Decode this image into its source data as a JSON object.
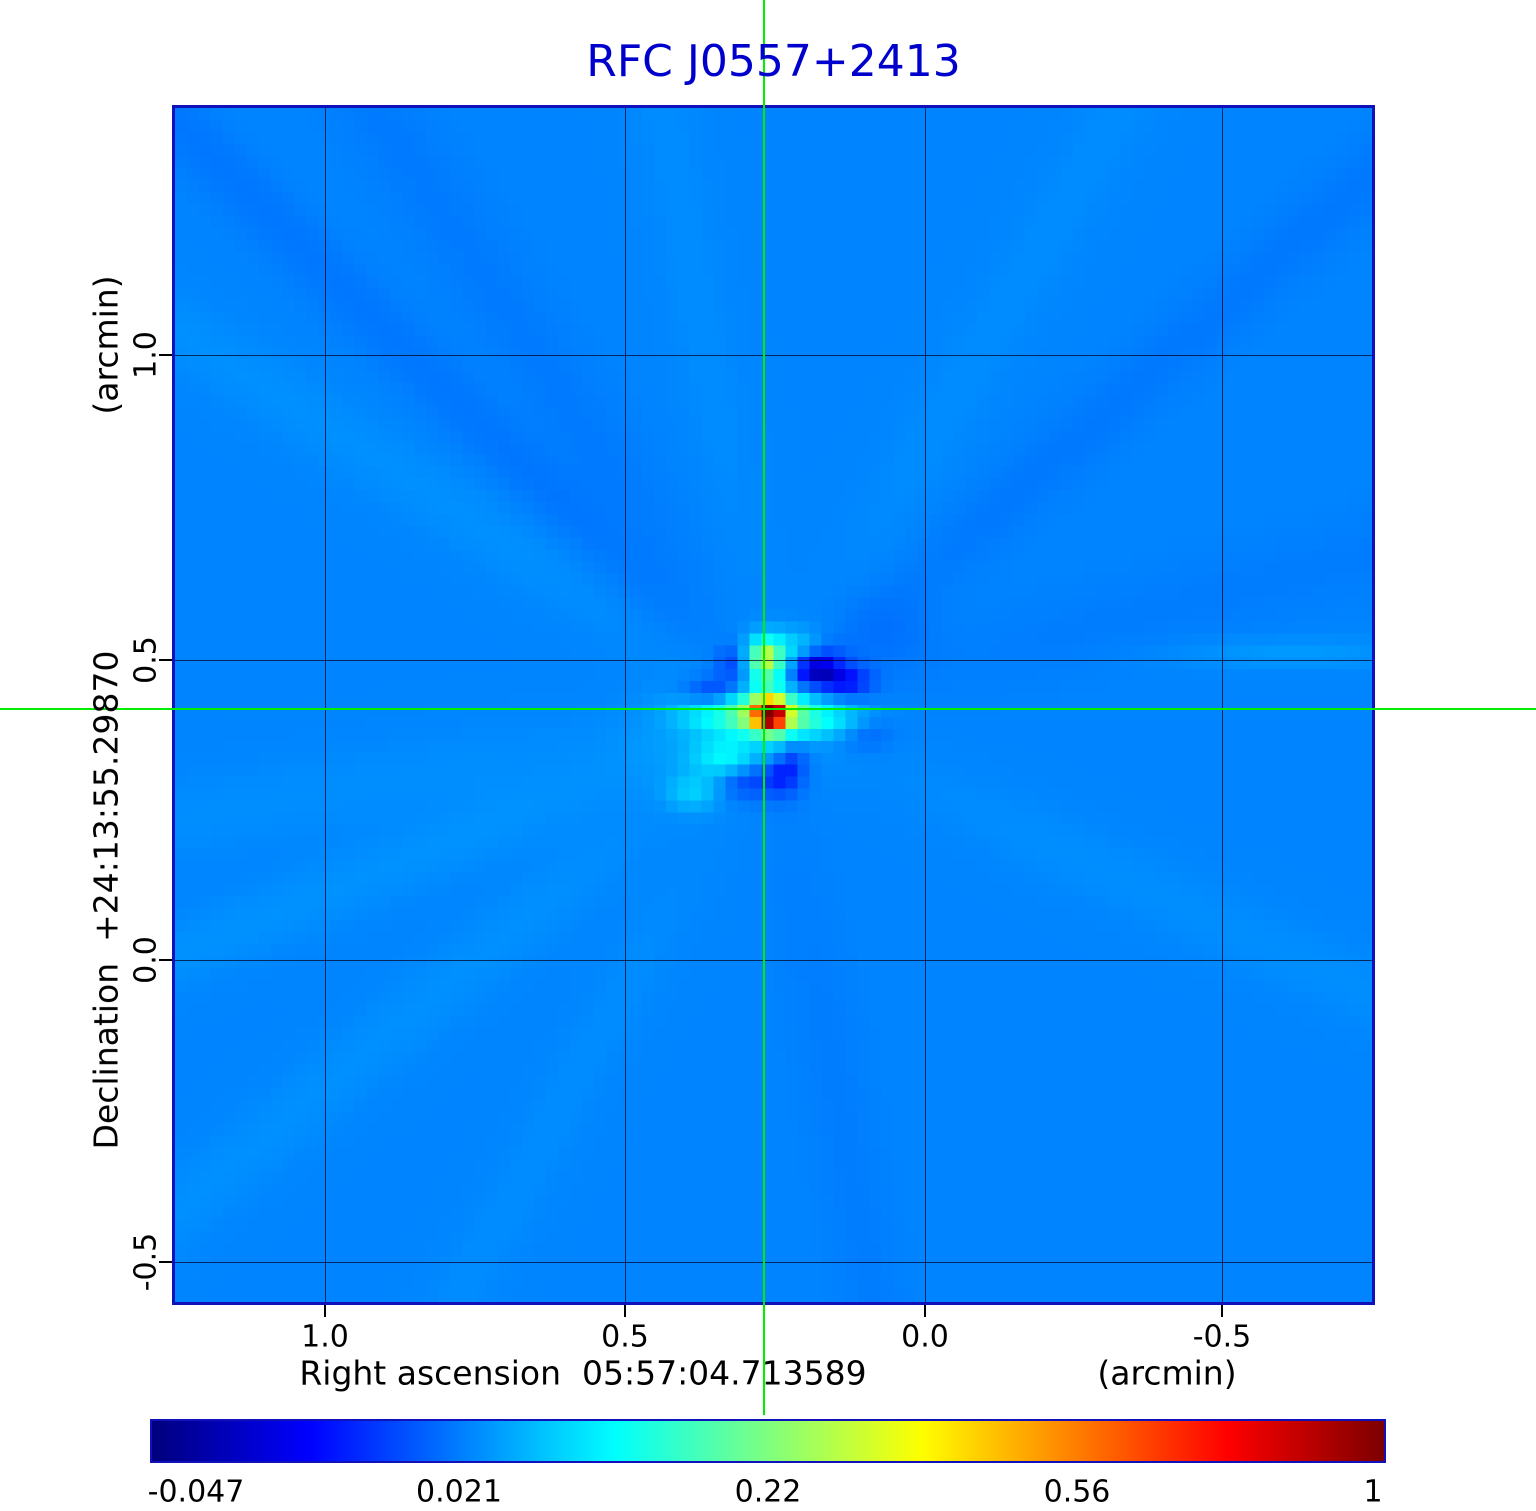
{
  "title": "RFC J0557+2413",
  "colors": {
    "title": "#0000cc",
    "frame": "#1111bb",
    "crosshair": "#00ee00",
    "grid": "#05052a",
    "text": "#000000",
    "background": "#ffffff",
    "map_background": "#1585f0"
  },
  "axes": {
    "y_unit": "(arcmin)",
    "y_label": "Declination  +24:13:55.29870",
    "y_tick_labels": [
      "1.0",
      "0.5",
      "0.0",
      "-0.5"
    ],
    "x_label": "Right ascension  05:57:04.713589",
    "x_unit": "(arcmin)",
    "x_tick_labels": [
      "1.0",
      "0.5",
      "0.0",
      "-0.5"
    ]
  },
  "colorbar": {
    "tick_labels": [
      "-0.047",
      "0.021",
      "0.22",
      "0.56",
      "1"
    ]
  },
  "chart_data": {
    "type": "heatmap",
    "title": "RFC J0557+2413",
    "xlabel": "Right ascension  05:57:04.713589 (arcmin)",
    "ylabel": "Declination  +24:13:55.29870 (arcmin)",
    "x_ticks_arcmin": [
      1.0,
      0.5,
      0.0,
      -0.5
    ],
    "y_ticks_arcmin": [
      1.0,
      0.5,
      0.0,
      -0.5
    ],
    "xlim_arcmin": [
      1.26,
      -0.75
    ],
    "ylim_arcmin": [
      -0.57,
      1.41
    ],
    "grid": true,
    "colormap": "jet",
    "scale": "power-law gamma 0.5 normalization",
    "value_range": [
      -0.047,
      1.0
    ],
    "colorbar_ticks": [
      -0.047,
      0.021,
      0.22,
      0.56,
      1
    ],
    "background_level": 0.021,
    "peak": {
      "ra_offset_arcmin": 0.27,
      "dec_offset_arcmin": 0.41,
      "value": 1.0
    },
    "crosshair_arcmin": {
      "x": 0.27,
      "y": 0.41
    },
    "render": {
      "grid": 100,
      "center": [
        49.2,
        50.3
      ],
      "background_value": 0.021,
      "gaussians": [
        {
          "x": 49.2,
          "y": 50.3,
          "sx": 0.75,
          "sy": 0.7,
          "a": 1.0
        },
        {
          "x": 49.2,
          "y": 50.3,
          "sx": 1.9,
          "sy": 1.1,
          "a": 0.3
        },
        {
          "x": 49.0,
          "y": 50.2,
          "sx": 4.5,
          "sy": 3.5,
          "a": 0.015
        },
        {
          "x": 48.9,
          "y": 45.6,
          "sx": 1.1,
          "sy": 1.2,
          "a": 0.18
        },
        {
          "x": 48.9,
          "y": 45.4,
          "sx": 0.55,
          "sy": 0.55,
          "a": 0.1
        },
        {
          "x": 49.0,
          "y": 47.9,
          "sx": 0.9,
          "sy": 1.4,
          "a": 0.06
        },
        {
          "x": 45.0,
          "y": 50.2,
          "sx": 2.3,
          "sy": 1.0,
          "a": 0.09
        },
        {
          "x": 53.6,
          "y": 50.7,
          "sx": 2.6,
          "sy": 1.0,
          "a": 0.07
        },
        {
          "x": 45.6,
          "y": 53.9,
          "sx": 1.9,
          "sy": 1.2,
          "a": 0.07
        },
        {
          "x": 49.6,
          "y": 53.4,
          "sx": 0.9,
          "sy": 1.3,
          "a": 0.05
        },
        {
          "x": 51.6,
          "y": 44.7,
          "sx": 1.4,
          "sy": 1.0,
          "a": 0.05
        },
        {
          "x": 42.8,
          "y": 56.8,
          "sx": 1.5,
          "sy": 1.0,
          "a": 0.04
        },
        {
          "x": 93.0,
          "y": 45.2,
          "sx": 7.0,
          "sy": 0.9,
          "a": 0.012
        },
        {
          "x": 52.8,
          "y": 46.3,
          "sx": 1.6,
          "sy": 1.3,
          "a": -0.075
        },
        {
          "x": 55.7,
          "y": 47.6,
          "sx": 1.5,
          "sy": 1.0,
          "a": -0.045
        },
        {
          "x": 50.1,
          "y": 54.6,
          "sx": 1.3,
          "sy": 1.6,
          "a": -0.07
        },
        {
          "x": 46.8,
          "y": 55.7,
          "sx": 1.5,
          "sy": 1.1,
          "a": -0.04
        },
        {
          "x": 44.6,
          "y": 48.9,
          "sx": 1.7,
          "sy": 1.1,
          "a": -0.055
        },
        {
          "x": 46.3,
          "y": 46.0,
          "sx": 1.1,
          "sy": 1.1,
          "a": -0.035
        },
        {
          "x": 56.9,
          "y": 51.6,
          "sx": 1.7,
          "sy": 1.1,
          "a": -0.025
        },
        {
          "x": 41.5,
          "y": 52.5,
          "sx": 3.5,
          "sy": 2.5,
          "a": 0.008
        },
        {
          "x": 58.5,
          "y": 43.5,
          "sx": 3.0,
          "sy": 2.5,
          "a": -0.008
        }
      ],
      "streaks": [
        {
          "angle_deg": 225,
          "width": 1.8,
          "a": -0.007
        },
        {
          "angle_deg": 237,
          "width": 2.5,
          "a": -0.005
        },
        {
          "angle_deg": 213,
          "width": 2.2,
          "a": 0.006
        },
        {
          "angle_deg": 158,
          "width": 2.0,
          "a": 0.007
        },
        {
          "angle_deg": 170,
          "width": 2.5,
          "a": 0.005
        },
        {
          "angle_deg": 140,
          "width": 2.2,
          "a": 0.006
        },
        {
          "angle_deg": 118,
          "width": 2.0,
          "a": 0.004
        },
        {
          "angle_deg": 318,
          "width": 2.0,
          "a": -0.006
        },
        {
          "angle_deg": 300,
          "width": 2.2,
          "a": 0.004
        },
        {
          "angle_deg": 25,
          "width": 2.2,
          "a": 0.005
        },
        {
          "angle_deg": 345,
          "width": 2.5,
          "a": -0.004
        },
        {
          "angle_deg": 80,
          "width": 2.0,
          "a": -0.004
        },
        {
          "angle_deg": 260,
          "width": 2.0,
          "a": 0.004
        }
      ]
    }
  }
}
